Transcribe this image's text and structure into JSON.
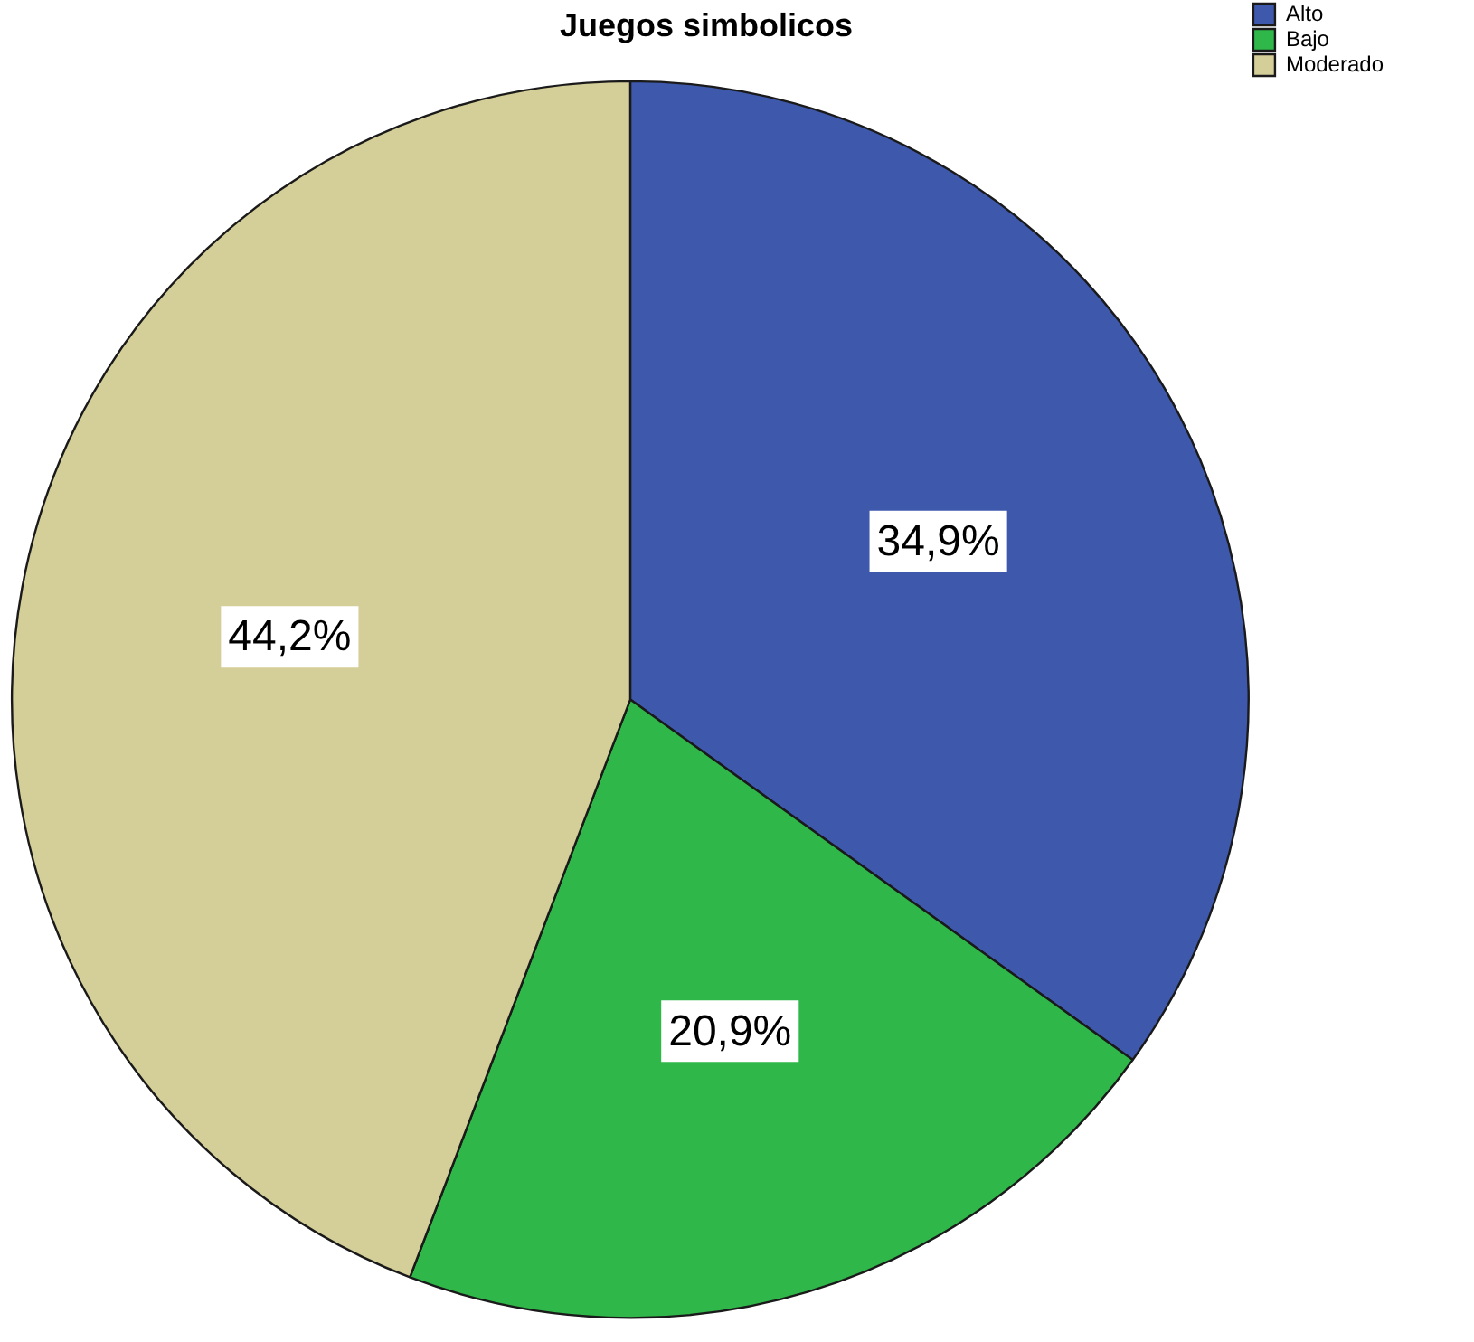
{
  "chart_data": {
    "type": "pie",
    "title": "Juegos simbolicos",
    "categories": [
      "Alto",
      "Bajo",
      "Moderado"
    ],
    "values": [
      34.9,
      20.9,
      44.2
    ],
    "colors": [
      "#3e58ac",
      "#2fb74a",
      "#d4ce98"
    ],
    "value_labels": [
      "34,9%",
      "20,9%",
      "44,2%"
    ],
    "legend": "top right"
  }
}
